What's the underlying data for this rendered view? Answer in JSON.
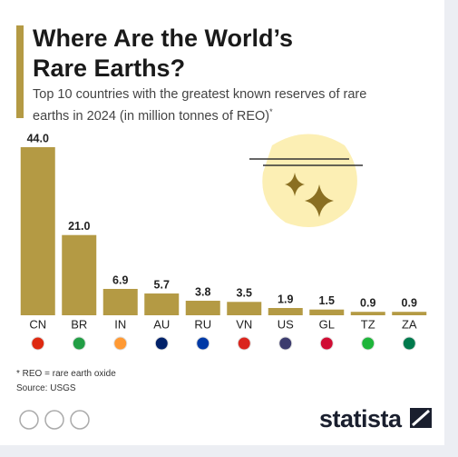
{
  "chart_data": {
    "type": "bar",
    "title": "Where Are the World’s Rare Earths?",
    "subtitle": "Top 10 countries with the greatest known reserves of rare earths in 2024 (in million tonnes of REO)",
    "subtitle_marker": "*",
    "categories": [
      "CN",
      "BR",
      "IN",
      "AU",
      "RU",
      "VN",
      "US",
      "GL",
      "TZ",
      "ZA"
    ],
    "values": [
      44.0,
      21.0,
      6.9,
      5.7,
      3.8,
      3.5,
      1.9,
      1.5,
      0.9,
      0.9
    ],
    "value_labels": [
      "44.0",
      "21.0",
      "6.9",
      "5.7",
      "3.8",
      "3.5",
      "1.9",
      "1.5",
      "0.9",
      "0.9"
    ],
    "color": "#b49a44",
    "ylim": [
      0,
      44
    ],
    "footnote": "* REO = rare earth oxide",
    "source": "Source: USGS",
    "brand": "statista"
  }
}
